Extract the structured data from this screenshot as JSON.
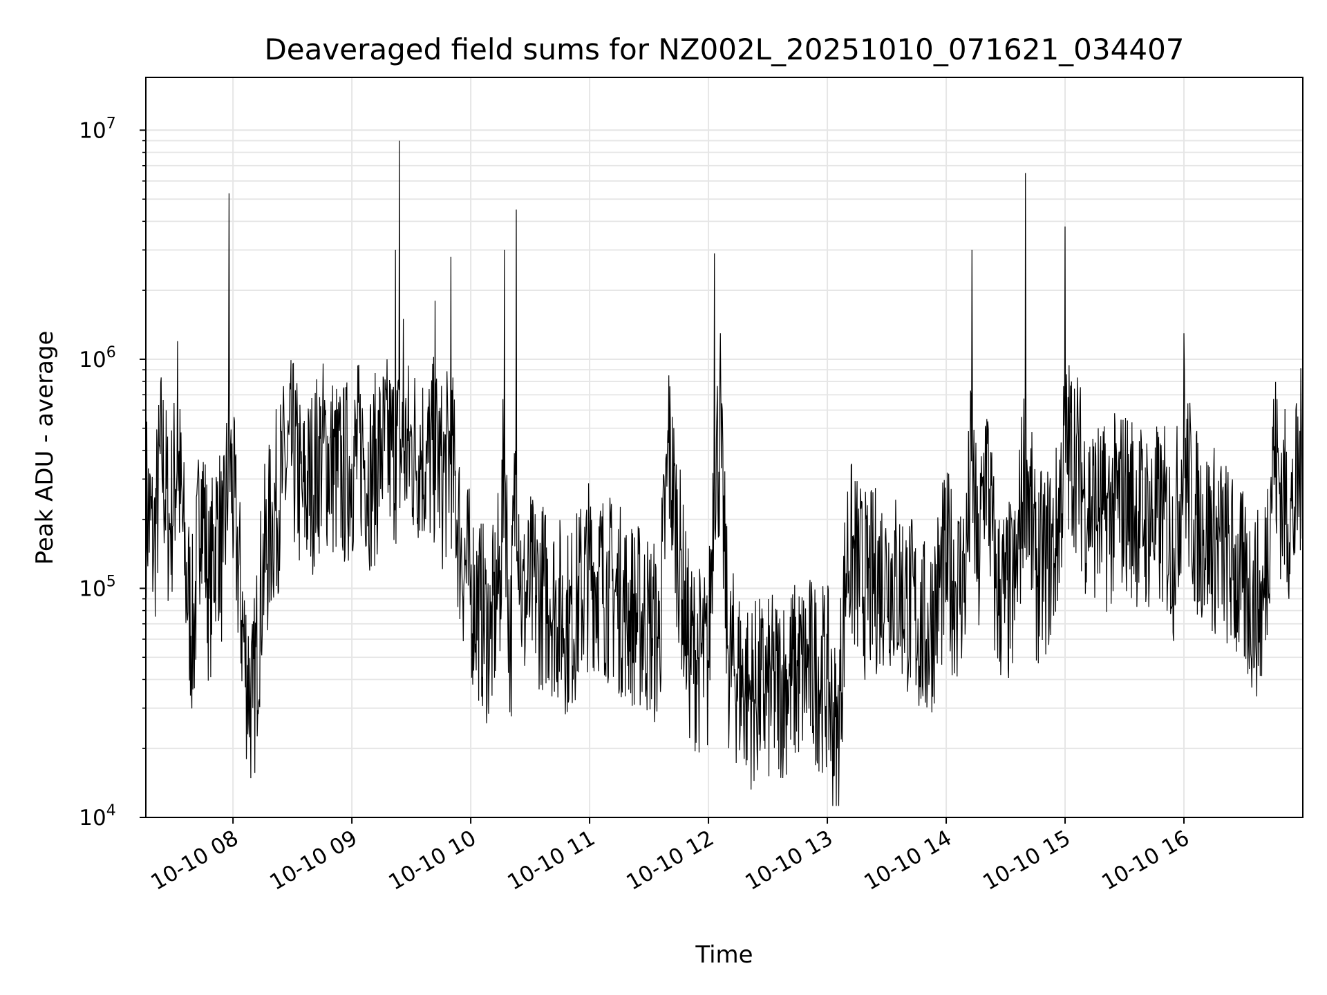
{
  "chart_data": {
    "type": "line",
    "title": "Deaveraged field sums for NZ002L_20251010_071621_034407",
    "xlabel": "Time",
    "ylabel": "Peak ADU - average",
    "xscale": "time",
    "yscale": "log",
    "xlim": [
      "2025-10-10 07:16",
      "2025-10-10 17:00"
    ],
    "ylim": [
      10000,
      17000000
    ],
    "x_ticks": [
      {
        "time": "2025-10-10 08:00",
        "label": "10-10 08"
      },
      {
        "time": "2025-10-10 09:00",
        "label": "10-10 09"
      },
      {
        "time": "2025-10-10 10:00",
        "label": "10-10 10"
      },
      {
        "time": "2025-10-10 11:00",
        "label": "10-10 11"
      },
      {
        "time": "2025-10-10 12:00",
        "label": "10-10 12"
      },
      {
        "time": "2025-10-10 13:00",
        "label": "10-10 13"
      },
      {
        "time": "2025-10-10 14:00",
        "label": "10-10 14"
      },
      {
        "time": "2025-10-10 15:00",
        "label": "10-10 15"
      },
      {
        "time": "2025-10-10 16:00",
        "label": "10-10 16"
      }
    ],
    "y_ticks": [
      {
        "value": 10000,
        "base": "10",
        "exp": "4"
      },
      {
        "value": 100000,
        "base": "10",
        "exp": "5"
      },
      {
        "value": 1000000,
        "base": "10",
        "exp": "6"
      },
      {
        "value": 10000000,
        "base": "10",
        "exp": "7"
      }
    ],
    "grid": true,
    "line_color": "#000000",
    "grid_color": "#e6e6e6",
    "series": [
      {
        "x": [
          "2025-10-10 07:16",
          "2025-10-10 07:20",
          "2025-10-10 07:24",
          "2025-10-10 07:28",
          "2025-10-10 07:32",
          "2025-10-10 07:36",
          "2025-10-10 07:40",
          "2025-10-10 07:44",
          "2025-10-10 07:48",
          "2025-10-10 07:52",
          "2025-10-10 07:55",
          "2025-10-10 07:58",
          "2025-10-10 08:02",
          "2025-10-10 08:06",
          "2025-10-10 08:10",
          "2025-10-10 08:15",
          "2025-10-10 08:20",
          "2025-10-10 08:25",
          "2025-10-10 08:30",
          "2025-10-10 08:35",
          "2025-10-10 08:40",
          "2025-10-10 08:45",
          "2025-10-10 08:50",
          "2025-10-10 08:55",
          "2025-10-10 09:00",
          "2025-10-10 09:05",
          "2025-10-10 09:10",
          "2025-10-10 09:15",
          "2025-10-10 09:20",
          "2025-10-10 09:22",
          "2025-10-10 09:24",
          "2025-10-10 09:26",
          "2025-10-10 09:30",
          "2025-10-10 09:35",
          "2025-10-10 09:38",
          "2025-10-10 09:42",
          "2025-10-10 09:46",
          "2025-10-10 09:50",
          "2025-10-10 09:55",
          "2025-10-10 10:00",
          "2025-10-10 10:05",
          "2025-10-10 10:10",
          "2025-10-10 10:15",
          "2025-10-10 10:17",
          "2025-10-10 10:20",
          "2025-10-10 10:23",
          "2025-10-10 10:26",
          "2025-10-10 10:30",
          "2025-10-10 10:40",
          "2025-10-10 10:50",
          "2025-10-10 11:00",
          "2025-10-10 11:10",
          "2025-10-10 11:20",
          "2025-10-10 11:30",
          "2025-10-10 11:35",
          "2025-10-10 11:40",
          "2025-10-10 11:50",
          "2025-10-10 11:55",
          "2025-10-10 12:00",
          "2025-10-10 12:03",
          "2025-10-10 12:06",
          "2025-10-10 12:10",
          "2025-10-10 12:20",
          "2025-10-10 12:30",
          "2025-10-10 12:40",
          "2025-10-10 12:50",
          "2025-10-10 13:00",
          "2025-10-10 13:05",
          "2025-10-10 13:10",
          "2025-10-10 13:20",
          "2025-10-10 13:30",
          "2025-10-10 13:40",
          "2025-10-10 13:50",
          "2025-10-10 14:00",
          "2025-10-10 14:05",
          "2025-10-10 14:10",
          "2025-10-10 14:13",
          "2025-10-10 14:16",
          "2025-10-10 14:20",
          "2025-10-10 14:25",
          "2025-10-10 14:30",
          "2025-10-10 14:35",
          "2025-10-10 14:40",
          "2025-10-10 14:45",
          "2025-10-10 14:50",
          "2025-10-10 14:55",
          "2025-10-10 15:00",
          "2025-10-10 15:05",
          "2025-10-10 15:10",
          "2025-10-10 15:20",
          "2025-10-10 15:30",
          "2025-10-10 15:40",
          "2025-10-10 15:50",
          "2025-10-10 15:55",
          "2025-10-10 16:00",
          "2025-10-10 16:05",
          "2025-10-10 16:10",
          "2025-10-10 16:20",
          "2025-10-10 16:30",
          "2025-10-10 16:40",
          "2025-10-10 16:45",
          "2025-10-10 16:50",
          "2025-10-10 16:55",
          "2025-10-10 17:00"
        ],
        "y": [
          250000,
          150000,
          400000,
          180000,
          1200000,
          120000,
          60000,
          300000,
          90000,
          200000,
          130000,
          5300000,
          150000,
          50000,
          30000,
          120000,
          200000,
          300000,
          400000,
          250000,
          300000,
          450000,
          350000,
          300000,
          350000,
          400000,
          300000,
          500000,
          400000,
          3000000,
          9000000,
          1500000,
          500000,
          400000,
          350000,
          1800000,
          300000,
          2800000,
          150000,
          100000,
          80000,
          60000,
          120000,
          3000000,
          50000,
          4500000,
          80000,
          100000,
          90000,
          70000,
          120000,
          100000,
          80000,
          70000,
          60000,
          850000,
          55000,
          50000,
          45000,
          2900000,
          1300000,
          50000,
          35000,
          35000,
          40000,
          45000,
          40000,
          20000,
          150000,
          100000,
          120000,
          90000,
          60000,
          130000,
          100000,
          120000,
          3000000,
          110000,
          500000,
          100000,
          90000,
          100000,
          6500000,
          120000,
          130000,
          150000,
          3800000,
          400000,
          250000,
          200000,
          250000,
          200000,
          200000,
          150000,
          1300000,
          200000,
          180000,
          150000,
          100000,
          80000,
          400000,
          250000,
          200000,
          1100000
        ]
      }
    ]
  }
}
